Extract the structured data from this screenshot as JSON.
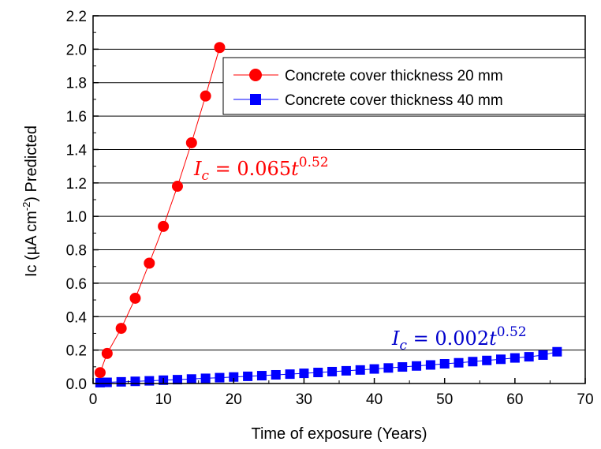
{
  "chart_data": {
    "type": "scatter",
    "xlabel": "Time of exposure (Years)",
    "ylabel": {
      "base": "Ic (µA cm",
      "superscript": "-2",
      "tail": ") Predicted"
    },
    "xlim": [
      0,
      70
    ],
    "ylim": [
      0,
      2.2
    ],
    "x_ticks": [
      0,
      10,
      20,
      30,
      40,
      50,
      60,
      70
    ],
    "y_ticks": [
      0.0,
      0.2,
      0.4,
      0.6,
      0.8,
      1.0,
      1.2,
      1.4,
      1.6,
      1.8,
      2.0,
      2.2
    ],
    "y_tick_labels": [
      "0.0",
      "0.2",
      "0.4",
      "0.6",
      "0.8",
      "1.0",
      "1.2",
      "1.4",
      "1.6",
      "1.8",
      "2.0",
      "2.2"
    ],
    "x_tick_labels": [
      "0",
      "10",
      "20",
      "30",
      "40",
      "50",
      "60",
      "70"
    ],
    "grid": "horizontal",
    "legend_position": "top-right",
    "series": [
      {
        "name": "Concrete cover thickness 20 mm",
        "color": "#ff0000",
        "marker": "circle",
        "connected": true,
        "x": [
          1,
          2,
          4,
          6,
          8,
          10,
          12,
          14,
          16,
          18
        ],
        "y": [
          0.065,
          0.18,
          0.33,
          0.51,
          0.72,
          0.94,
          1.18,
          1.44,
          1.72,
          2.01
        ]
      },
      {
        "name": "Concrete cover thickness 40 mm",
        "color": "#0000ff",
        "marker": "square",
        "connected": true,
        "x": [
          1,
          2,
          4,
          6,
          8,
          10,
          12,
          14,
          16,
          18,
          20,
          22,
          24,
          26,
          28,
          30,
          32,
          34,
          36,
          38,
          40,
          42,
          44,
          46,
          48,
          50,
          52,
          54,
          56,
          58,
          60,
          62,
          64,
          66
        ],
        "y": [
          0.005,
          0.007,
          0.01,
          0.013,
          0.016,
          0.02,
          0.023,
          0.027,
          0.031,
          0.035,
          0.039,
          0.043,
          0.047,
          0.052,
          0.056,
          0.061,
          0.066,
          0.071,
          0.076,
          0.081,
          0.087,
          0.093,
          0.099,
          0.105,
          0.111,
          0.118,
          0.124,
          0.131,
          0.138,
          0.145,
          0.153,
          0.16,
          0.17,
          0.19
        ]
      }
    ],
    "annotations": [
      {
        "series": 0,
        "color": "#ff0000",
        "symbol": "I",
        "subscript": "c",
        "equals": " = ",
        "coefficient": "0.065",
        "variable": "t",
        "exponent": "0.52"
      },
      {
        "series": 1,
        "color": "#0000cc",
        "symbol": "I",
        "subscript": "c",
        "equals": " = ",
        "coefficient": "0.002",
        "variable": "t",
        "exponent": "0.52"
      }
    ]
  }
}
